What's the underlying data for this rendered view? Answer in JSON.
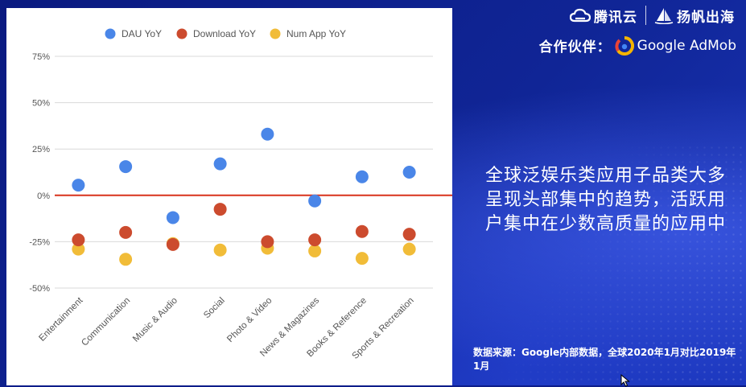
{
  "brand": {
    "cloud_name": "腾讯云",
    "partner_brand": "扬帆出海",
    "partner_label": "合作伙伴：",
    "admob_name": "Google AdMob"
  },
  "headline": "全球泛娱乐类应用子品类大多呈现头部集中的趋势，活跃用户集中在少数高质量的应用中",
  "source": "数据来源：Google内部数据，全球2020年1月对比2019年1月",
  "colors": {
    "dau": "#4a86e8",
    "download": "#cc4b2e",
    "num_app": "#f1bc38",
    "zero_line": "#d8321c",
    "grid": "#d9d9d9",
    "background": "#0d1d8a"
  },
  "chart_data": {
    "type": "scatter",
    "categories": [
      "Entertainment",
      "Communication",
      "Music & Audio",
      "Social",
      "Photo & Video",
      "News & Magazines",
      "Books & Reference",
      "Sports & Recreation"
    ],
    "series": [
      {
        "name": "DAU YoY",
        "values": [
          5.5,
          15.5,
          -12,
          17,
          33,
          -3,
          10,
          12.5
        ]
      },
      {
        "name": "Download YoY",
        "values": [
          -24,
          -20,
          -26.5,
          -7.5,
          -25,
          -24,
          -19.5,
          -21
        ]
      },
      {
        "name": "Num App YoY",
        "values": [
          -29,
          -34.5,
          -26,
          -29.5,
          -28.5,
          -30,
          -34,
          -29
        ]
      }
    ],
    "yticks": [
      "75%",
      "50%",
      "25%",
      "0%",
      "-25%",
      "-50%"
    ],
    "ytick_values": [
      75,
      50,
      25,
      0,
      -25,
      -50
    ],
    "ylim": [
      -50,
      75
    ],
    "grid": true,
    "legend": "top-center",
    "title": "",
    "xlabel": "",
    "ylabel": ""
  }
}
